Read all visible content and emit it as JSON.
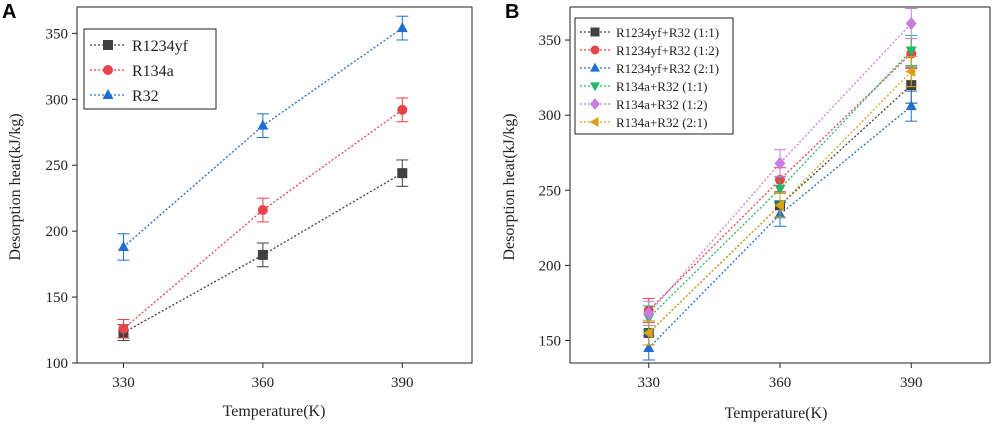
{
  "chart_data": [
    {
      "panel": "A",
      "type": "line",
      "xlabel": "Temperature(K)",
      "ylabel": "Desorption heat(kJ/kg)",
      "x": [
        330,
        360,
        390
      ],
      "xlim": [
        320,
        405
      ],
      "ylim": [
        100,
        370
      ],
      "xticks": [
        330,
        360,
        390
      ],
      "yticks": [
        100,
        150,
        200,
        250,
        300,
        350
      ],
      "legend_position": "top-left",
      "series": [
        {
          "name": "R1234yf",
          "color": "#404040",
          "marker": "square",
          "values": [
            123,
            182,
            244
          ],
          "errors": [
            6,
            9,
            10
          ]
        },
        {
          "name": "R134a",
          "color": "#e8424a",
          "marker": "circle",
          "values": [
            126,
            216,
            292
          ],
          "errors": [
            7,
            9,
            9
          ]
        },
        {
          "name": "R32",
          "color": "#1f6fcf",
          "marker": "triangle-up",
          "values": [
            188,
            280,
            354
          ],
          "errors": [
            10,
            9,
            9
          ]
        }
      ]
    },
    {
      "panel": "B",
      "type": "line",
      "xlabel": "Temperature(K)",
      "ylabel": "Desorption heat(kJ/kg)",
      "x": [
        330,
        360,
        390
      ],
      "xlim": [
        312,
        408
      ],
      "ylim": [
        135,
        372
      ],
      "xticks": [
        330,
        360,
        390
      ],
      "yticks": [
        150,
        200,
        250,
        300,
        350
      ],
      "legend_position": "top-left",
      "series": [
        {
          "name": "R1234yf+R32 (1:1)",
          "color": "#404040",
          "marker": "square",
          "values": [
            155,
            240,
            320
          ],
          "errors": [
            8,
            8,
            12
          ]
        },
        {
          "name": "R1234yf+R32 (1:2)",
          "color": "#e8424a",
          "marker": "circle",
          "values": [
            170,
            257,
            341
          ],
          "errors": [
            8,
            8,
            10
          ]
        },
        {
          "name": "R1234yf+R32 (2:1)",
          "color": "#1f6fcf",
          "marker": "triangle-up",
          "values": [
            145,
            234,
            306
          ],
          "errors": [
            8,
            8,
            10
          ]
        },
        {
          "name": "R134a+R32 (1:1)",
          "color": "#22b866",
          "marker": "triangle-down",
          "values": [
            165,
            251,
            343
          ],
          "errors": [
            8,
            8,
            10
          ]
        },
        {
          "name": "R134a+R32 (1:2)",
          "color": "#c77ee0",
          "marker": "diamond",
          "values": [
            168,
            268,
            361
          ],
          "errors": [
            8,
            9,
            10
          ]
        },
        {
          "name": "R134a+R32 (2:1)",
          "color": "#d8a21a",
          "marker": "triangle-left",
          "values": [
            155,
            240,
            329
          ],
          "errors": [
            8,
            8,
            10
          ]
        }
      ]
    }
  ]
}
